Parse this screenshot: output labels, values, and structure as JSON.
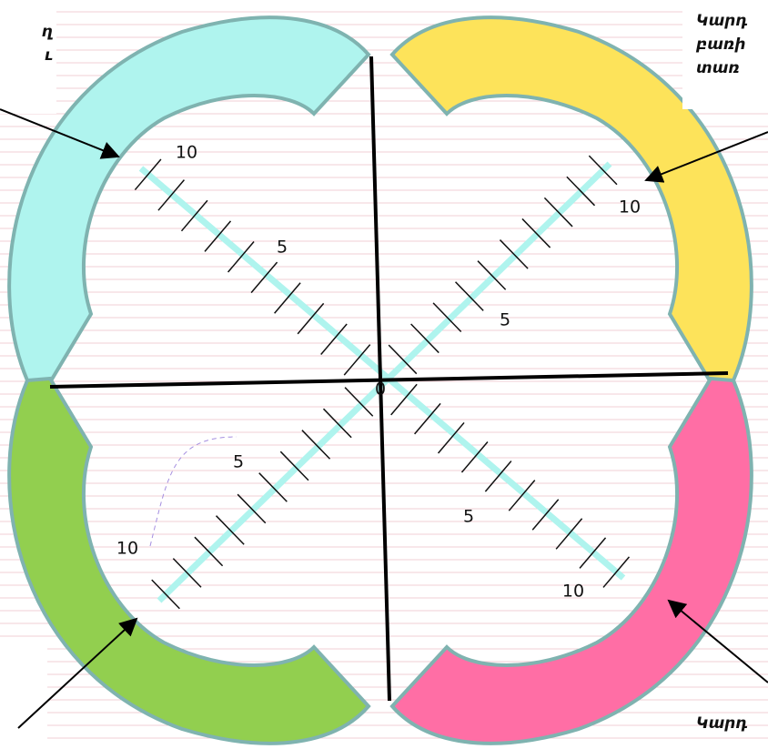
{
  "axis_labels": [
    "10",
    "5",
    "10",
    "5",
    "0",
    "5",
    "10",
    "5",
    "10"
  ],
  "callouts": [
    {
      "lines": [
        "ղ",
        "ւ"
      ]
    },
    {
      "lines": [
        "Կարդ",
        "բառի",
        "տառ"
      ]
    },
    {
      "lines": [
        "Կարդ"
      ]
    }
  ]
}
